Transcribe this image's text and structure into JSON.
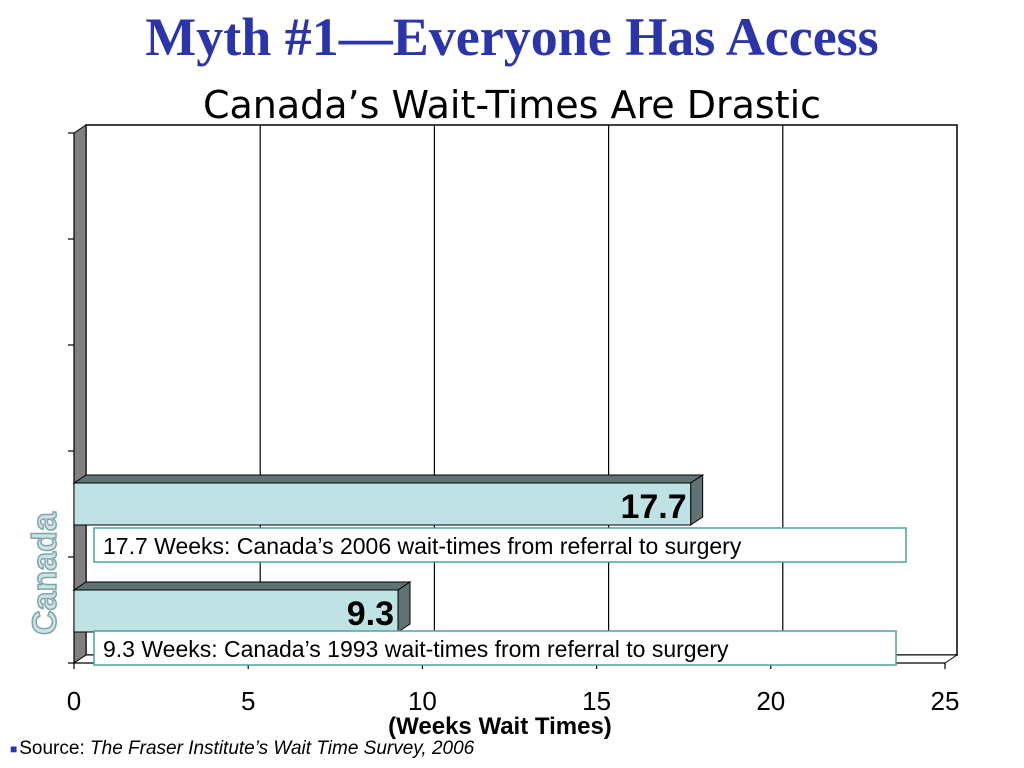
{
  "page": {
    "title": "Myth #1—Everyone Has Access",
    "subtitle": "Canada’s Wait-Times Are Drastic",
    "side_label": "Canada",
    "source_prefix": "Source: ",
    "source_text": "The Fraser Institute’s Wait Time Survey, 2006"
  },
  "colors": {
    "title": "#2b35a8",
    "bar_face": "#bfe2e4",
    "bar_side": "#5f7372",
    "annotation_border": "#4aa3a3",
    "side_label_fill": "#cfe3e5",
    "side_label_stroke": "#7fa5aa",
    "wall_dark": "#808080"
  },
  "chart_data": {
    "type": "bar",
    "orientation": "horizontal",
    "categories": [
      "2006",
      "1993"
    ],
    "values": [
      17.7,
      9.3
    ],
    "data_labels": [
      "17.7",
      "9.3"
    ],
    "annotations": [
      "17.7 Weeks: Canada’s 2006 wait-times from referral to surgery",
      "9.3 Weeks: Canada’s 1993 wait-times from referral to surgery"
    ],
    "title": "Canada’s Wait-Times Are Drastic",
    "xlabel": "(Weeks Wait Times)",
    "ylabel": "Canada",
    "xlim": [
      0,
      25
    ],
    "xticks": [
      "0",
      "5",
      "10",
      "15",
      "20",
      "25"
    ],
    "grid": true,
    "legend": "none"
  }
}
